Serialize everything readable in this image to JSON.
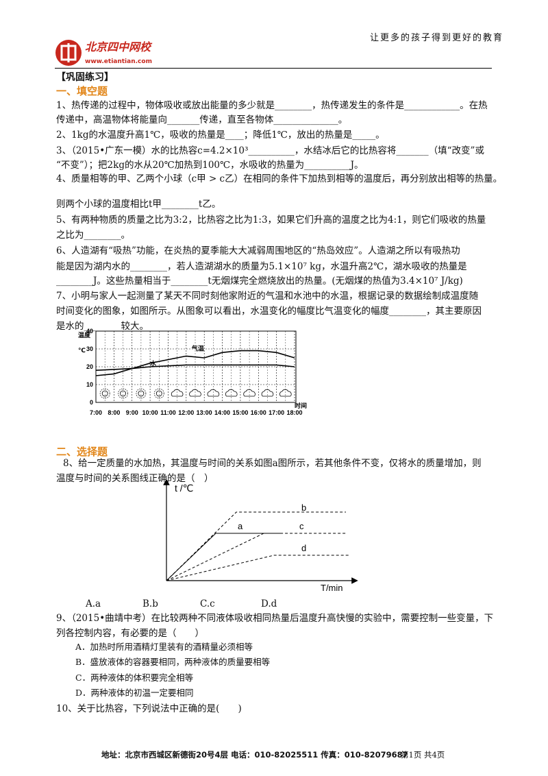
{
  "header": {
    "logo_name": "北京四中网校",
    "logo_url": "www.etiantian.com",
    "slogan": "让更多的孩子得到更好的教育"
  },
  "section_label": "【巩固练习】",
  "part1": {
    "title": "一、填空题",
    "lines": [
      "1、热传递的过程中，物体吸收或放出能量的多少就是________，热传递发生的条件是____________。在热",
      "传递中，高温物体将能量向_______传递，直至各物体______________。",
      "2、1kg的水温度升高1℃，吸收的热量是____；降低1℃，放出的热量是_____。",
      "3、（2015•广东一模）水的比热容c=4.2×10³__________，水结冰后它的比热容将_______（填“改变”或",
      "“不变”）；把2kg的水从20℃加热到100℃，水吸收的热量为__________J。",
      "4、质量相等的甲、乙两个小球（c甲 > c乙）在相同的条件下加热到相等的温度后，再分别放出相等的热量。",
      "则两个小球的温度相比t甲________t乙。",
      "5、有两种物质的质量之比为3:2，比热容之比为1:3，如果它们升高的温度之比为4:1，则它们吸收的热量",
      "之比为________。",
      "6、人造湖有“吸热”功能，在炎热的夏季能大大减弱周围地区的“热岛效应”。人造湖之所以有吸热功",
      "能是因为湖内水的________，若人造湖湖水的质量为5.1×10⁷ kg，水温升高2℃，湖水吸收的热量是",
      "________J。这些热量相当于________t无烟煤完全燃烧放出的热量。(无烟煤的热值为3.4×10⁷ J/kg)",
      "7、小明与家人一起测量了某天不同时刻他家附近的气温和水池中的水温，根据记录的数据绘制成温度随",
      "时间变化的图象，如图所示。从图象可以看出，水温变化的幅度比气温变化的幅度________，其主要原因",
      "是水的________较大。"
    ]
  },
  "figure1": {
    "ylabel": "温度",
    "yunit": "℃",
    "xlabel": "时间",
    "yticks": [
      0,
      10,
      20,
      30,
      40
    ],
    "categories": [
      "7:00",
      "8:00",
      "9:00",
      "10:00",
      "11:00",
      "12:00",
      "13:00",
      "14:00",
      "15:00",
      "16:00",
      "17:00",
      "18:00"
    ],
    "series": [
      {
        "name": "气温",
        "values": [
          15,
          16,
          19,
          22,
          24,
          26,
          25,
          28,
          29,
          29,
          28,
          25
        ]
      },
      {
        "name": "水",
        "values": [
          18,
          18.5,
          19,
          20,
          20.5,
          21,
          21,
          21,
          21,
          21,
          21,
          20
        ]
      }
    ]
  },
  "part2": {
    "title": "二、选择题"
  },
  "q8": {
    "lines": [
      "8、给一定质量的水加热，其温度与时间的关系如图a图所示，若其他条件不变，仅将水的质量增加，则",
      "温度与时间的关系图线正确的是（　）"
    ],
    "figure": {
      "ylabel": "t /℃",
      "xlabel": "T/min",
      "curves": [
        "a",
        "b",
        "c",
        "d"
      ]
    },
    "options": [
      "A.a",
      "B.b",
      "C.c",
      "D.d"
    ]
  },
  "q9": {
    "lines": [
      "9、（2015•曲靖中考）在比较两种不同液体吸收相同热量后温度升高快慢的实验中，需要控制一些变量，下",
      "列各控制内容，有必要的是（　　）"
    ],
    "options": [
      "A．加热时所用酒精灯里装有的酒精量必须相等",
      "B．盛放液体的容器要相同，两种液体的质量要相等",
      "C．两种液体的体积要完全相等",
      "D．两种液体的初温一定要相同"
    ]
  },
  "q10": {
    "line": "10、关于比热容，下列说法中正确的是(　　)"
  },
  "footer": {
    "address": "地址：北京市西城区新德街20号4层  电话：010-82025511  传真：010-82079687",
    "page": "第1页  共4页"
  }
}
